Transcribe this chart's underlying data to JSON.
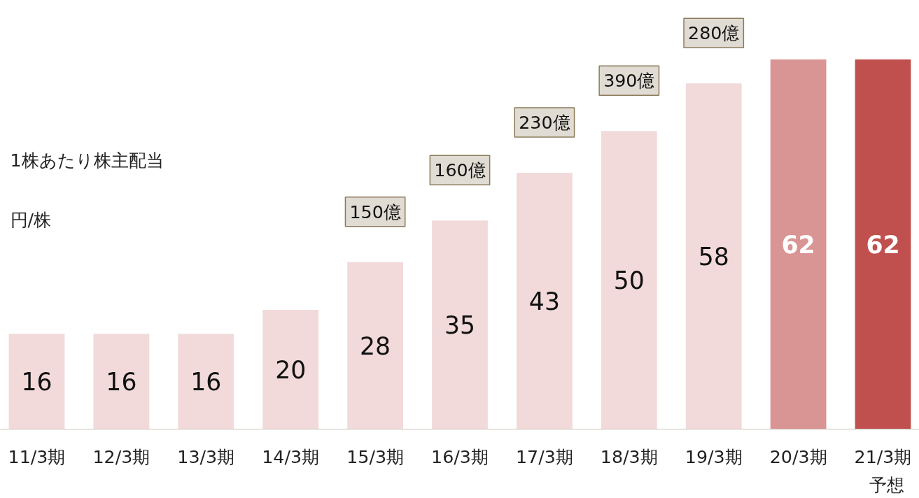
{
  "chart_data": {
    "type": "bar",
    "title": "1株あたり株主配当",
    "ylabel": "円/株",
    "categories": [
      "11/3期",
      "12/3期",
      "13/3期",
      "14/3期",
      "15/3期",
      "16/3期",
      "17/3期",
      "18/3期",
      "19/3期",
      "20/3期",
      "21/3期"
    ],
    "values": [
      16,
      16,
      16,
      20,
      28,
      35,
      43,
      50,
      58,
      62,
      62
    ],
    "colors": [
      "#f2dada",
      "#f2dada",
      "#f2dada",
      "#f2dada",
      "#f2dada",
      "#f2dada",
      "#f2dada",
      "#f2dada",
      "#f2dada",
      "#d99494",
      "#c0504d"
    ],
    "data_labels": true,
    "annotations": [
      {
        "text": "150億",
        "x": "15/3期",
        "y": 28
      },
      {
        "text": "160億",
        "x": "16/3期",
        "y": 35
      },
      {
        "text": "230億",
        "x": "17/3期",
        "y": 43
      },
      {
        "text": "390億",
        "x": "18/3期",
        "y": 50
      },
      {
        "text": "280億",
        "x": "19/3期",
        "y": 58
      },
      "予想"
    ],
    "grid": false
  }
}
